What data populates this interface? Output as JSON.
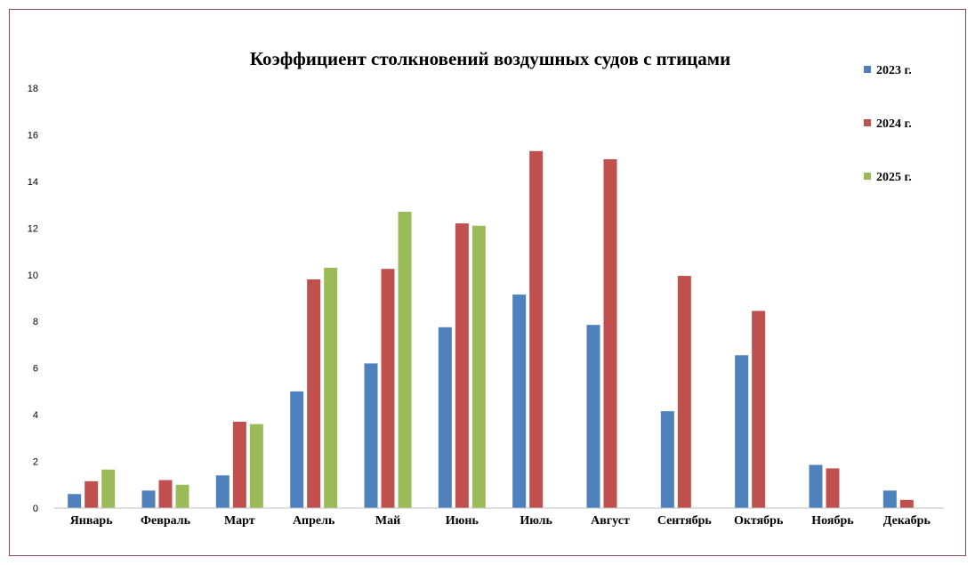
{
  "chart_data": {
    "type": "bar",
    "title": "Коэффициент столкновений воздушных судов с птицами",
    "xlabel": "",
    "ylabel": "",
    "ylim": [
      0,
      18
    ],
    "yticks": [
      "0",
      "2",
      "4",
      "6",
      "8",
      "10",
      "12",
      "14",
      "16",
      "18"
    ],
    "grid": false,
    "legend_position": "top-right",
    "categories": [
      "Январь",
      "Февраль",
      "Март",
      "Апрель",
      "Май",
      "Июнь",
      "Июль",
      "Август",
      "Сентябрь",
      "Октябрь",
      "Ноябрь",
      "Декабрь"
    ],
    "series": [
      {
        "name": "2023 г.",
        "color": "#4f81bd",
        "values": [
          0.6,
          0.75,
          1.4,
          5.0,
          6.2,
          7.75,
          9.15,
          7.85,
          4.15,
          6.55,
          1.85,
          0.75
        ]
      },
      {
        "name": "2024 г.",
        "color": "#c0504d",
        "values": [
          1.15,
          1.2,
          3.7,
          9.8,
          10.25,
          12.2,
          15.3,
          14.95,
          9.95,
          8.45,
          1.7,
          0.35
        ]
      },
      {
        "name": "2025 г.",
        "color": "#9bbb59",
        "values": [
          1.65,
          1.0,
          3.6,
          10.3,
          12.7,
          12.1,
          null,
          null,
          null,
          null,
          null,
          null
        ]
      }
    ]
  }
}
